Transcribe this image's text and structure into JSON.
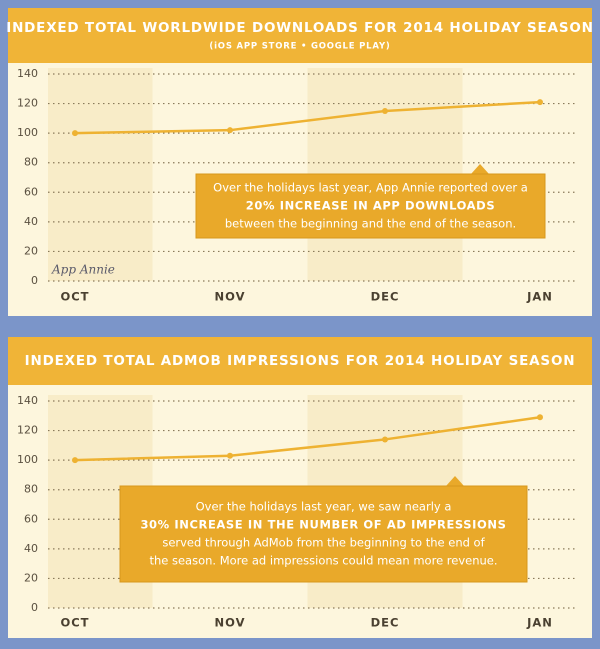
{
  "chart_data": [
    {
      "type": "line",
      "title": "INDEXED TOTAL WORLDWIDE DOWNLOADS FOR 2014 HOLIDAY SEASON",
      "subtitle": "(iOS APP STORE • GOOGLE PLAY)",
      "categories": [
        "OCT",
        "NOV",
        "DEC",
        "JAN"
      ],
      "values": [
        100,
        102,
        115,
        121
      ],
      "color": "#eeb232",
      "ylim": [
        0,
        140
      ],
      "yticks": [
        0,
        20,
        40,
        60,
        80,
        100,
        120,
        140
      ],
      "grid": true,
      "annotation": [
        "Over the holidays last year, App Annie reported over a",
        "20% INCREASE IN APP DOWNLOADS",
        "between the beginning and the end of the season."
      ],
      "watermark": "App Annie"
    },
    {
      "type": "line",
      "title": "INDEXED TOTAL ADMOB IMPRESSIONS FOR 2014 HOLIDAY SEASON",
      "categories": [
        "OCT",
        "NOV",
        "DEC",
        "JAN"
      ],
      "values": [
        100,
        103,
        114,
        129
      ],
      "color": "#eeb232",
      "ylim": [
        0,
        140
      ],
      "yticks": [
        0,
        20,
        40,
        60,
        80,
        100,
        120,
        140
      ],
      "grid": true,
      "annotation": [
        "Over the holidays last year, we saw nearly a",
        "30% INCREASE IN THE NUMBER OF AD IMPRESSIONS",
        "served through AdMob from the beginning to the end of",
        "the season. More ad impressions could mean more revenue."
      ]
    }
  ]
}
